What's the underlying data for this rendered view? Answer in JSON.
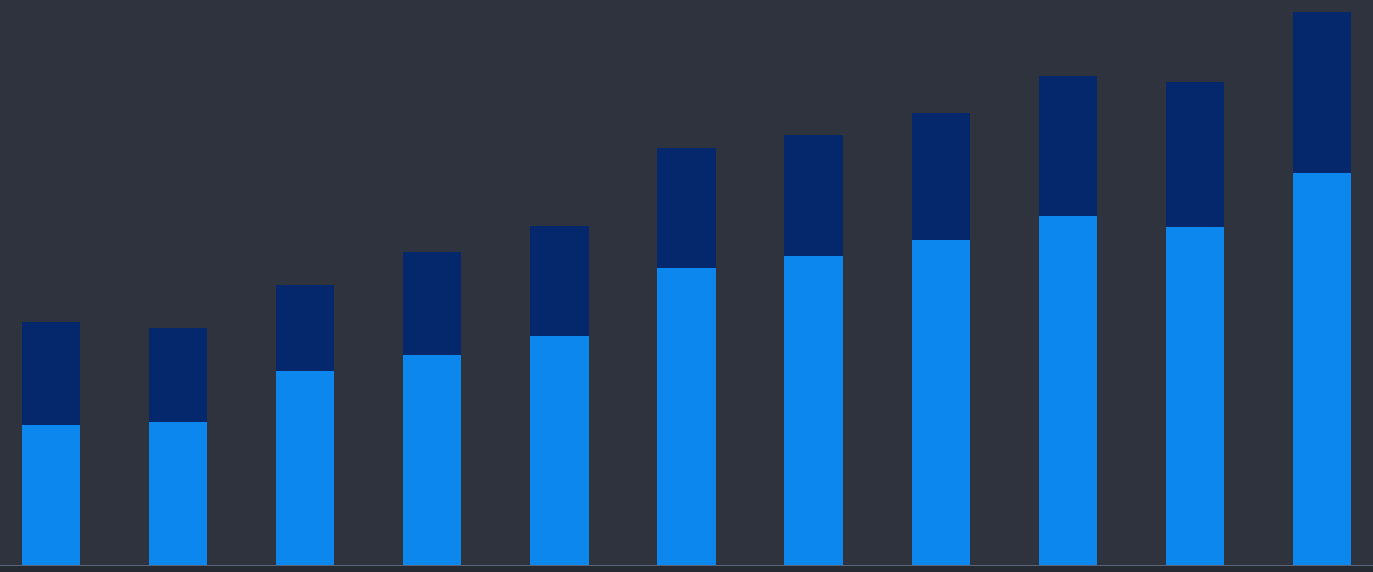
{
  "chart_data": {
    "type": "bar",
    "stacked": true,
    "categories": [
      null,
      null,
      null,
      null,
      null,
      null,
      null,
      null,
      null,
      null,
      null
    ],
    "series": [
      {
        "color": "#0b87ee",
        "values": [
          140,
          143,
          194,
          210,
          229,
          297,
          309,
          325,
          349,
          338,
          392
        ]
      },
      {
        "color": "#05286c",
        "values": [
          103,
          94,
          86,
          103,
          110,
          120,
          121,
          127,
          140,
          145,
          161
        ]
      }
    ],
    "ylim": [
      0,
      565
    ],
    "yticks": [],
    "grid": false,
    "tick_labels": false
  }
}
